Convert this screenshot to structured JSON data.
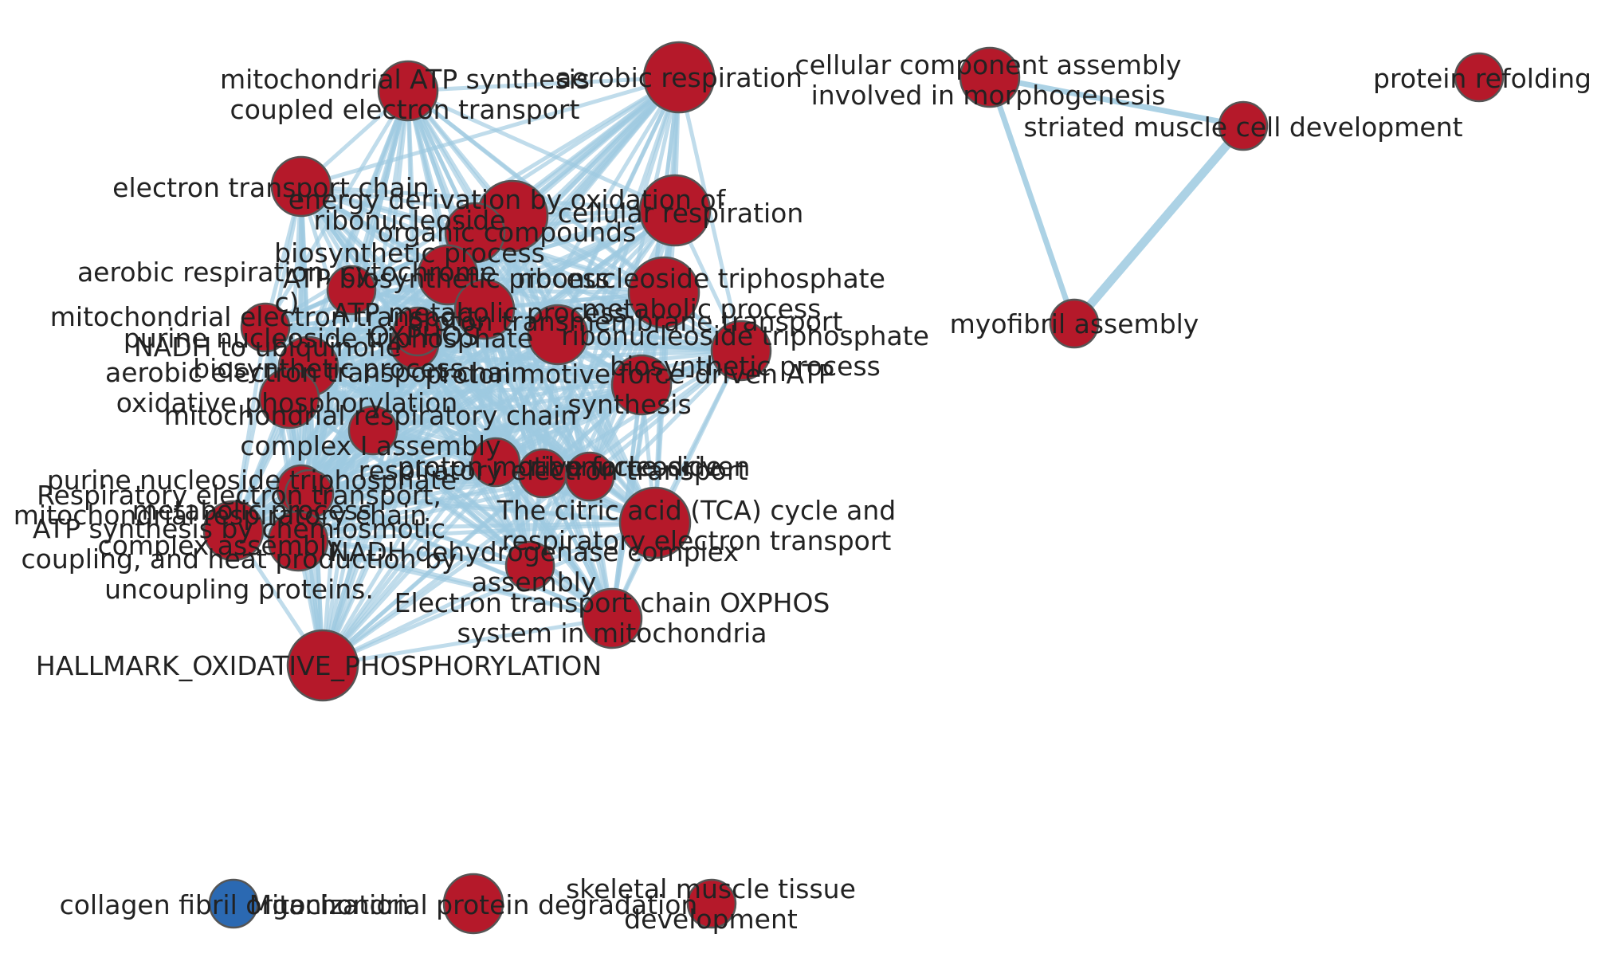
{
  "colors": {
    "enriched_node": "#b5192a",
    "depleted_node": "#2b69b2",
    "edge": "#9ecae1",
    "node_border": "#555555",
    "label": "#222222",
    "background": "#ffffff"
  },
  "nodes": [
    {
      "id": "mito-atp-synth",
      "lines": [
        "mitochondrial ATP synthesis",
        "coupled electron transport"
      ],
      "size": "medium",
      "color": "red"
    },
    {
      "id": "aerobic-resp",
      "lines": [
        "aerobic respiration"
      ],
      "size": "large",
      "color": "red"
    },
    {
      "id": "electron-transport-chain",
      "lines": [
        "electron transport chain"
      ],
      "size": "medium",
      "color": "red"
    },
    {
      "id": "energy-derivation",
      "lines": [
        "energy derivation by oxidation of",
        "organic compounds"
      ],
      "size": "large",
      "color": "red"
    },
    {
      "id": "ribonucleoside-biosynth",
      "lines": [
        "ribonucleoside",
        "biosynthetic process"
      ],
      "size": "medium",
      "color": "red"
    },
    {
      "id": "cellular-resp",
      "lines": [
        "cellular respiration"
      ],
      "size": "large",
      "color": "red"
    },
    {
      "id": "aerobic-resp-cytochrome",
      "lines": [
        "aerobic respiration, cytochrome",
        "c)"
      ],
      "size": "small",
      "color": "red"
    },
    {
      "id": "atp-biosynth",
      "lines": [
        "ATP biosynthetic process"
      ],
      "size": "medium",
      "color": "red"
    },
    {
      "id": "ribonucleoside-triphosphate",
      "lines": [
        "ribonucleoside triphosphate",
        "metabolic process"
      ],
      "size": "large",
      "color": "red"
    },
    {
      "id": "mito-electron-transport-nadh",
      "lines": [
        "mitochondrial electron transport,",
        "NADH to ubiquinone"
      ],
      "size": "small",
      "color": "red"
    },
    {
      "id": "atp-metabolic",
      "lines": [
        "ATP metabolic process"
      ],
      "size": "medium",
      "color": "red"
    },
    {
      "id": "purine-nucleoside-biosynth",
      "lines": [
        "purine nucleoside triphosphate",
        "biosynthetic process"
      ],
      "size": "small",
      "color": "red"
    },
    {
      "id": "oxphos",
      "lines": [
        "OXPHOS"
      ],
      "size": "small",
      "color": "red"
    },
    {
      "id": "proton-transport",
      "lines": [
        "proton transmembrane transport"
      ],
      "size": "medium",
      "color": "red"
    },
    {
      "id": "aerobic-electron-transport-chain",
      "lines": [
        "aerobic electron transport chain"
      ],
      "size": "medium",
      "color": "red"
    },
    {
      "id": "ribonucleoside-triphosphate-2",
      "lines": [
        "ribonucleoside triphosphate",
        "biosynthetic process"
      ],
      "size": "medium",
      "color": "red"
    },
    {
      "id": "proton-motive",
      "lines": [
        "proton motive force-driven ATP",
        "synthesis"
      ],
      "size": "medium",
      "color": "red"
    },
    {
      "id": "oxidative-phosphorylation",
      "lines": [
        "oxidative phosphorylation"
      ],
      "size": "medium",
      "color": "red"
    },
    {
      "id": "mito-respiratory-chain",
      "lines": [
        "mitochondrial respiratory chain",
        "complex I assembly"
      ],
      "size": "small",
      "color": "red"
    },
    {
      "id": "respiratory-electron",
      "lines": [
        "respiratory electron transport"
      ],
      "size": "small",
      "color": "red"
    },
    {
      "id": "proton-motive-2",
      "lines": [
        "proton motive force-driven"
      ],
      "size": "small",
      "color": "red"
    },
    {
      "id": "purine-nucleoside-metabolic",
      "lines": [
        "purine nucleoside triphosphate",
        "metabolic process"
      ],
      "size": "small",
      "color": "red"
    },
    {
      "id": "ribonucleoside-2",
      "lines": [
        "ribonucleoside"
      ],
      "size": "small",
      "color": "red"
    },
    {
      "id": "respiratory-electron-transport-2",
      "lines": [
        "Respiratory electron transport,"
      ],
      "size": "small",
      "color": "red"
    },
    {
      "id": "tca-cycle",
      "lines": [
        "The citric acid (TCA) cycle and",
        "respiratory electron transport"
      ],
      "size": "large",
      "color": "red"
    },
    {
      "id": "atp-synthesis-chemiosmotic",
      "lines": [
        "ATP synthesis by chemiosmotic",
        "coupling, and heat production by",
        "uncoupling proteins."
      ],
      "size": "medium",
      "color": "red"
    },
    {
      "id": "mito-complex-assembly",
      "lines": [
        "mitochondrial respiratory chain",
        "complex assembly"
      ],
      "size": "medium",
      "color": "red"
    },
    {
      "id": "nadh-dehydrogenase",
      "lines": [
        "NADH dehydrogenase complex",
        "assembly"
      ],
      "size": "small",
      "color": "red"
    },
    {
      "id": "etc-oxphos-mito",
      "lines": [
        "Electron transport chain OXPHOS",
        "system in mitochondria"
      ],
      "size": "medium",
      "color": "red"
    },
    {
      "id": "hallmark-oxphos",
      "lines": [
        "HALLMARK_OXIDATIVE_PHOSPHORYLATION"
      ],
      "size": "large",
      "color": "red"
    },
    {
      "id": "cellular-component-assembly",
      "lines": [
        "cellular component assembly",
        "involved in morphogenesis"
      ],
      "size": "medium",
      "color": "red"
    },
    {
      "id": "striated-muscle",
      "lines": [
        "striated muscle cell development"
      ],
      "size": "small",
      "color": "red"
    },
    {
      "id": "myofibril-assembly",
      "lines": [
        "myofibril assembly"
      ],
      "size": "small",
      "color": "red"
    },
    {
      "id": "protein-refolding",
      "lines": [
        "protein refolding"
      ],
      "size": "small",
      "color": "red"
    },
    {
      "id": "collagen-fibril",
      "lines": [
        "collagen fibril organization"
      ],
      "size": "small",
      "color": "blue"
    },
    {
      "id": "mito-protein-degradation",
      "lines": [
        "Mitochondrial protein degradation"
      ],
      "size": "medium",
      "color": "red"
    },
    {
      "id": "skeletal-muscle",
      "lines": [
        "skeletal muscle tissue",
        "development"
      ],
      "size": "small",
      "color": "red"
    }
  ],
  "edges": [
    {
      "source": "striated-muscle",
      "target": "myofibril-assembly",
      "weight": "strong"
    },
    {
      "source": "cellular-component-assembly",
      "target": "striated-muscle",
      "weight": "medium"
    },
    {
      "source": "cellular-component-assembly",
      "target": "myofibril-assembly",
      "weight": "medium"
    }
  ],
  "dense_cluster": [
    "mito-atp-synth",
    "aerobic-resp",
    "electron-transport-chain",
    "energy-derivation",
    "ribonucleoside-biosynth",
    "cellular-resp",
    "aerobic-resp-cytochrome",
    "atp-biosynth",
    "ribonucleoside-triphosphate",
    "mito-electron-transport-nadh",
    "atp-metabolic",
    "purine-nucleoside-biosynth",
    "oxphos",
    "proton-transport",
    "aerobic-electron-transport-chain",
    "ribonucleoside-triphosphate-2",
    "proton-motive",
    "oxidative-phosphorylation",
    "mito-respiratory-chain",
    "respiratory-electron",
    "proton-motive-2",
    "purine-nucleoside-metabolic",
    "ribonucleoside-2",
    "respiratory-electron-transport-2",
    "tca-cycle",
    "atp-synthesis-chemiosmotic",
    "mito-complex-assembly",
    "nadh-dehydrogenase",
    "etc-oxphos-mito",
    "hallmark-oxphos"
  ]
}
